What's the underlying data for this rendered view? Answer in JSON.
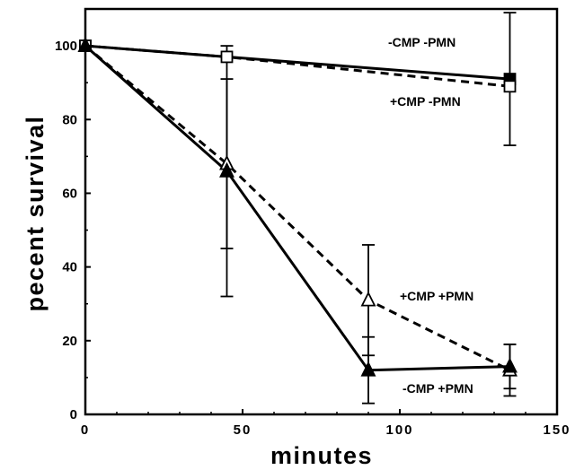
{
  "chart_data": {
    "type": "line",
    "xlabel": "minutes",
    "ylabel": "pecent survival",
    "xlim": [
      0,
      150
    ],
    "ylim": [
      0,
      110
    ],
    "xticks": [
      0,
      50,
      100,
      150
    ],
    "yticks": [
      0,
      20,
      40,
      60,
      80,
      100
    ],
    "grid": false,
    "series": [
      {
        "name": "-CMP -PMN",
        "style": "solid",
        "marker": "filled-square",
        "color": "#000000",
        "x": [
          0,
          135
        ],
        "y": [
          100,
          91
        ],
        "err": [
          0,
          18
        ]
      },
      {
        "name": "+CMP -PMN",
        "style": "dashed",
        "marker": "open-square",
        "color": "#000000",
        "x": [
          0,
          45,
          135
        ],
        "y": [
          100,
          97,
          89
        ],
        "err": [
          0,
          0,
          0
        ]
      },
      {
        "name": "+CMP +PMN",
        "style": "dashed",
        "marker": "open-triangle",
        "color": "#000000",
        "x": [
          0,
          45,
          90,
          135
        ],
        "y": [
          100,
          68,
          31,
          12
        ],
        "err": [
          0,
          23,
          15,
          7
        ]
      },
      {
        "name": "-CMP +PMN",
        "style": "solid",
        "marker": "filled-triangle",
        "color": "#000000",
        "x": [
          0,
          45,
          90,
          135
        ],
        "y": [
          100,
          66,
          12,
          13
        ],
        "err": [
          0,
          34,
          9,
          6
        ]
      }
    ]
  }
}
